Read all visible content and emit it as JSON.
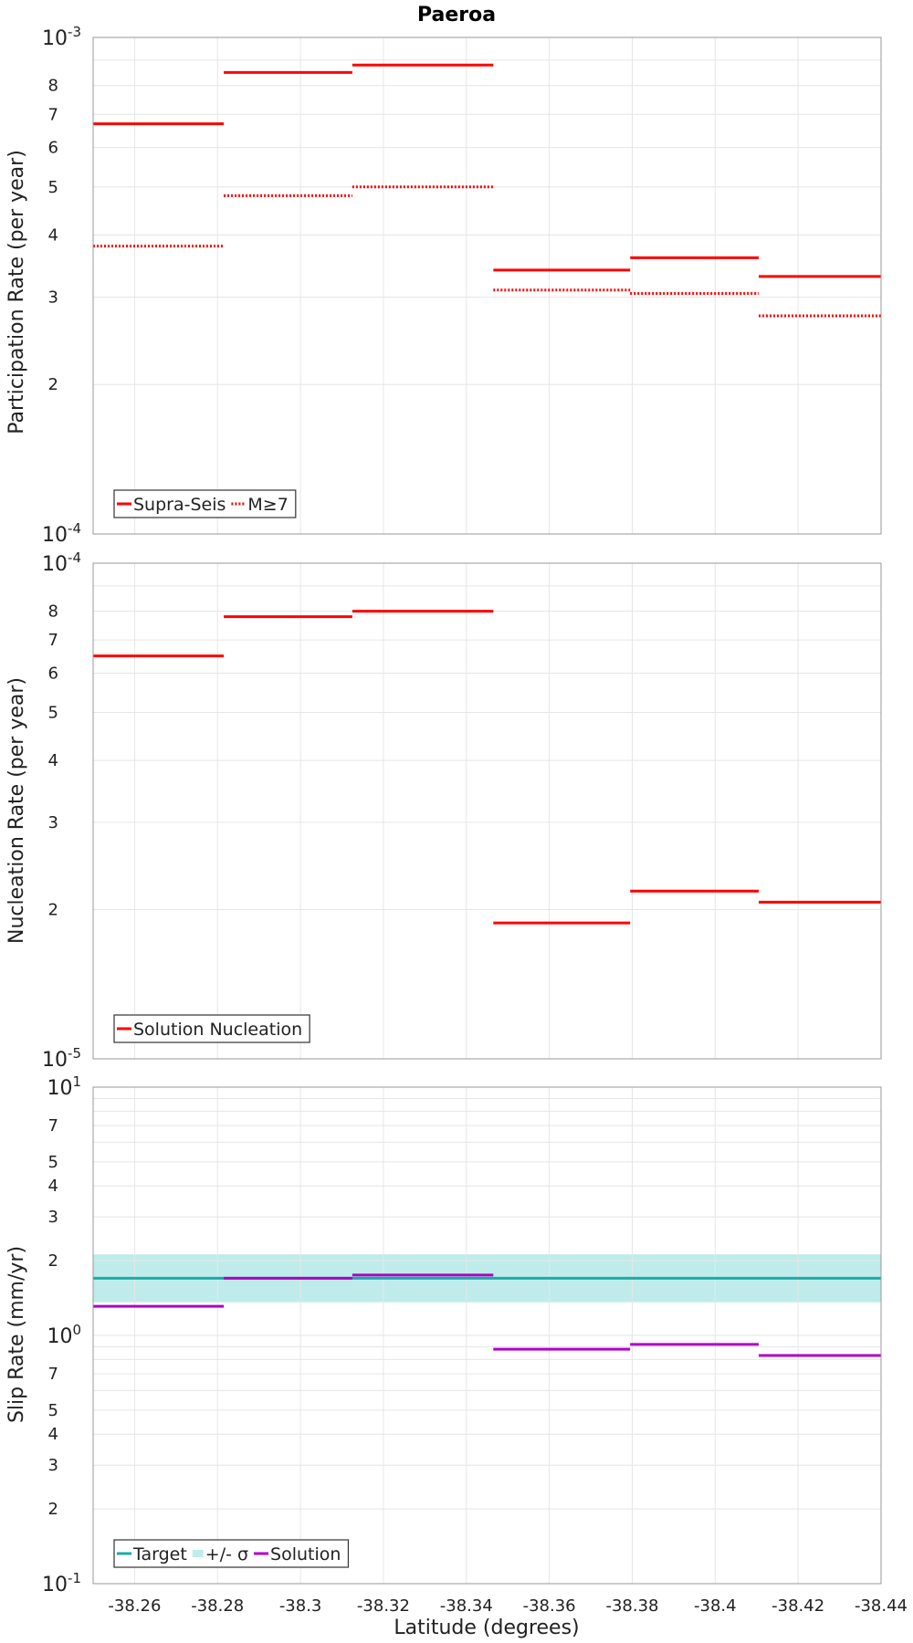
{
  "chart_data": [
    {
      "type": "line",
      "title": "Paeroa",
      "ylabel": "Participation Rate (per year)",
      "yscale": "log",
      "ylim": [
        0.0001,
        0.001
      ],
      "xlim": [
        -38.25,
        -38.44
      ],
      "grid": true,
      "legend_position": "bottom-left",
      "major_ticks": [
        {
          "value": 0.001,
          "base": "10",
          "exp": "-3"
        },
        {
          "value": 0.0001,
          "base": "10",
          "exp": "-4"
        }
      ],
      "minor_ticks": [
        {
          "value": 0.0008,
          "label": "8"
        },
        {
          "value": 0.0007,
          "label": "7"
        },
        {
          "value": 0.0006,
          "label": "6"
        },
        {
          "value": 0.0005,
          "label": "5"
        },
        {
          "value": 0.0004,
          "label": "4"
        },
        {
          "value": 0.0003,
          "label": "3"
        },
        {
          "value": 0.0002,
          "label": "2"
        }
      ],
      "series": [
        {
          "name": "Supra-Seis",
          "color": "#ff0000",
          "style": "solid",
          "segments": [
            {
              "x0": -38.25,
              "x1": -38.2815,
              "y": 0.00067
            },
            {
              "x0": -38.2815,
              "x1": -38.3125,
              "y": 0.00085
            },
            {
              "x0": -38.3125,
              "x1": -38.3465,
              "y": 0.00088
            },
            {
              "x0": -38.3465,
              "x1": -38.3795,
              "y": 0.00034
            },
            {
              "x0": -38.3795,
              "x1": -38.4105,
              "y": 0.00036
            },
            {
              "x0": -38.4105,
              "x1": -38.44,
              "y": 0.00033
            }
          ]
        },
        {
          "name": "M≥7",
          "color": "#ff0000",
          "style": "dotted",
          "segments": [
            {
              "x0": -38.25,
              "x1": -38.2815,
              "y": 0.00038
            },
            {
              "x0": -38.2815,
              "x1": -38.3125,
              "y": 0.00048
            },
            {
              "x0": -38.3125,
              "x1": -38.3465,
              "y": 0.0005
            },
            {
              "x0": -38.3465,
              "x1": -38.3795,
              "y": 0.00031
            },
            {
              "x0": -38.3795,
              "x1": -38.4105,
              "y": 0.000305
            },
            {
              "x0": -38.4105,
              "x1": -38.44,
              "y": 0.000275
            }
          ]
        }
      ]
    },
    {
      "type": "line",
      "ylabel": "Nucleation Rate (per year)",
      "yscale": "log",
      "ylim": [
        1e-05,
        0.0001
      ],
      "xlim": [
        -38.25,
        -38.44
      ],
      "grid": true,
      "legend_position": "bottom-left",
      "major_ticks": [
        {
          "value": 0.0001,
          "base": "10",
          "exp": "-4"
        },
        {
          "value": 1e-05,
          "base": "10",
          "exp": "-5"
        }
      ],
      "minor_ticks": [
        {
          "value": 8e-05,
          "label": "8"
        },
        {
          "value": 7e-05,
          "label": "7"
        },
        {
          "value": 6e-05,
          "label": "6"
        },
        {
          "value": 5e-05,
          "label": "5"
        },
        {
          "value": 4e-05,
          "label": "4"
        },
        {
          "value": 3e-05,
          "label": "3"
        },
        {
          "value": 2e-05,
          "label": "2"
        }
      ],
      "series": [
        {
          "name": "Solution Nucleation",
          "color": "#ff0000",
          "style": "solid",
          "segments": [
            {
              "x0": -38.25,
              "x1": -38.2815,
              "y": 6.5e-05
            },
            {
              "x0": -38.2815,
              "x1": -38.3125,
              "y": 7.8e-05
            },
            {
              "x0": -38.3125,
              "x1": -38.3465,
              "y": 8e-05
            },
            {
              "x0": -38.3465,
              "x1": -38.3795,
              "y": 1.88e-05
            },
            {
              "x0": -38.3795,
              "x1": -38.4105,
              "y": 2.18e-05
            },
            {
              "x0": -38.4105,
              "x1": -38.44,
              "y": 2.07e-05
            }
          ]
        }
      ]
    },
    {
      "type": "line",
      "ylabel": "Slip Rate (mm/yr)",
      "xlabel": "Latitude (degrees)",
      "yscale": "log",
      "ylim": [
        0.1,
        10
      ],
      "xlim": [
        -38.25,
        -38.44
      ],
      "grid": true,
      "legend_position": "bottom-left",
      "major_ticks": [
        {
          "value": 10,
          "base": "10",
          "exp": "1"
        },
        {
          "value": 1,
          "base": "10",
          "exp": "0"
        },
        {
          "value": 0.1,
          "base": "10",
          "exp": "-1"
        }
      ],
      "minor_ticks": [
        {
          "value": 7,
          "label": "7"
        },
        {
          "value": 5,
          "label": "5"
        },
        {
          "value": 4,
          "label": "4"
        },
        {
          "value": 3,
          "label": "3"
        },
        {
          "value": 2,
          "label": "2"
        },
        {
          "value": 0.7,
          "label": "7"
        },
        {
          "value": 0.5,
          "label": "5"
        },
        {
          "value": 0.4,
          "label": "4"
        },
        {
          "value": 0.3,
          "label": "3"
        },
        {
          "value": 0.2,
          "label": "2"
        }
      ],
      "x_ticks": [
        "-38.26",
        "-38.28",
        "-38.3",
        "-38.32",
        "-38.34",
        "-38.36",
        "-38.38",
        "-38.4",
        "-38.42",
        "-38.44"
      ],
      "x_tick_values": [
        -38.26,
        -38.28,
        -38.3,
        -38.32,
        -38.34,
        -38.36,
        -38.38,
        -38.4,
        -38.42,
        -38.44
      ],
      "target": {
        "name": "Target",
        "color": "#1aaca6",
        "y": 1.7,
        "x0": -38.25,
        "x1": -38.44
      },
      "band": {
        "name": "+/- σ",
        "color": "#bfeceb",
        "y_low": 1.36,
        "y_high": 2.12
      },
      "series": [
        {
          "name": "Solution",
          "color": "#b000c8",
          "style": "solid",
          "segments": [
            {
              "x0": -38.25,
              "x1": -38.2815,
              "y": 1.31
            },
            {
              "x0": -38.2815,
              "x1": -38.3125,
              "y": 1.7
            },
            {
              "x0": -38.3125,
              "x1": -38.3465,
              "y": 1.75
            },
            {
              "x0": -38.3465,
              "x1": -38.3795,
              "y": 0.88
            },
            {
              "x0": -38.3795,
              "x1": -38.4105,
              "y": 0.92
            },
            {
              "x0": -38.4105,
              "x1": -38.44,
              "y": 0.83
            }
          ]
        }
      ]
    }
  ]
}
